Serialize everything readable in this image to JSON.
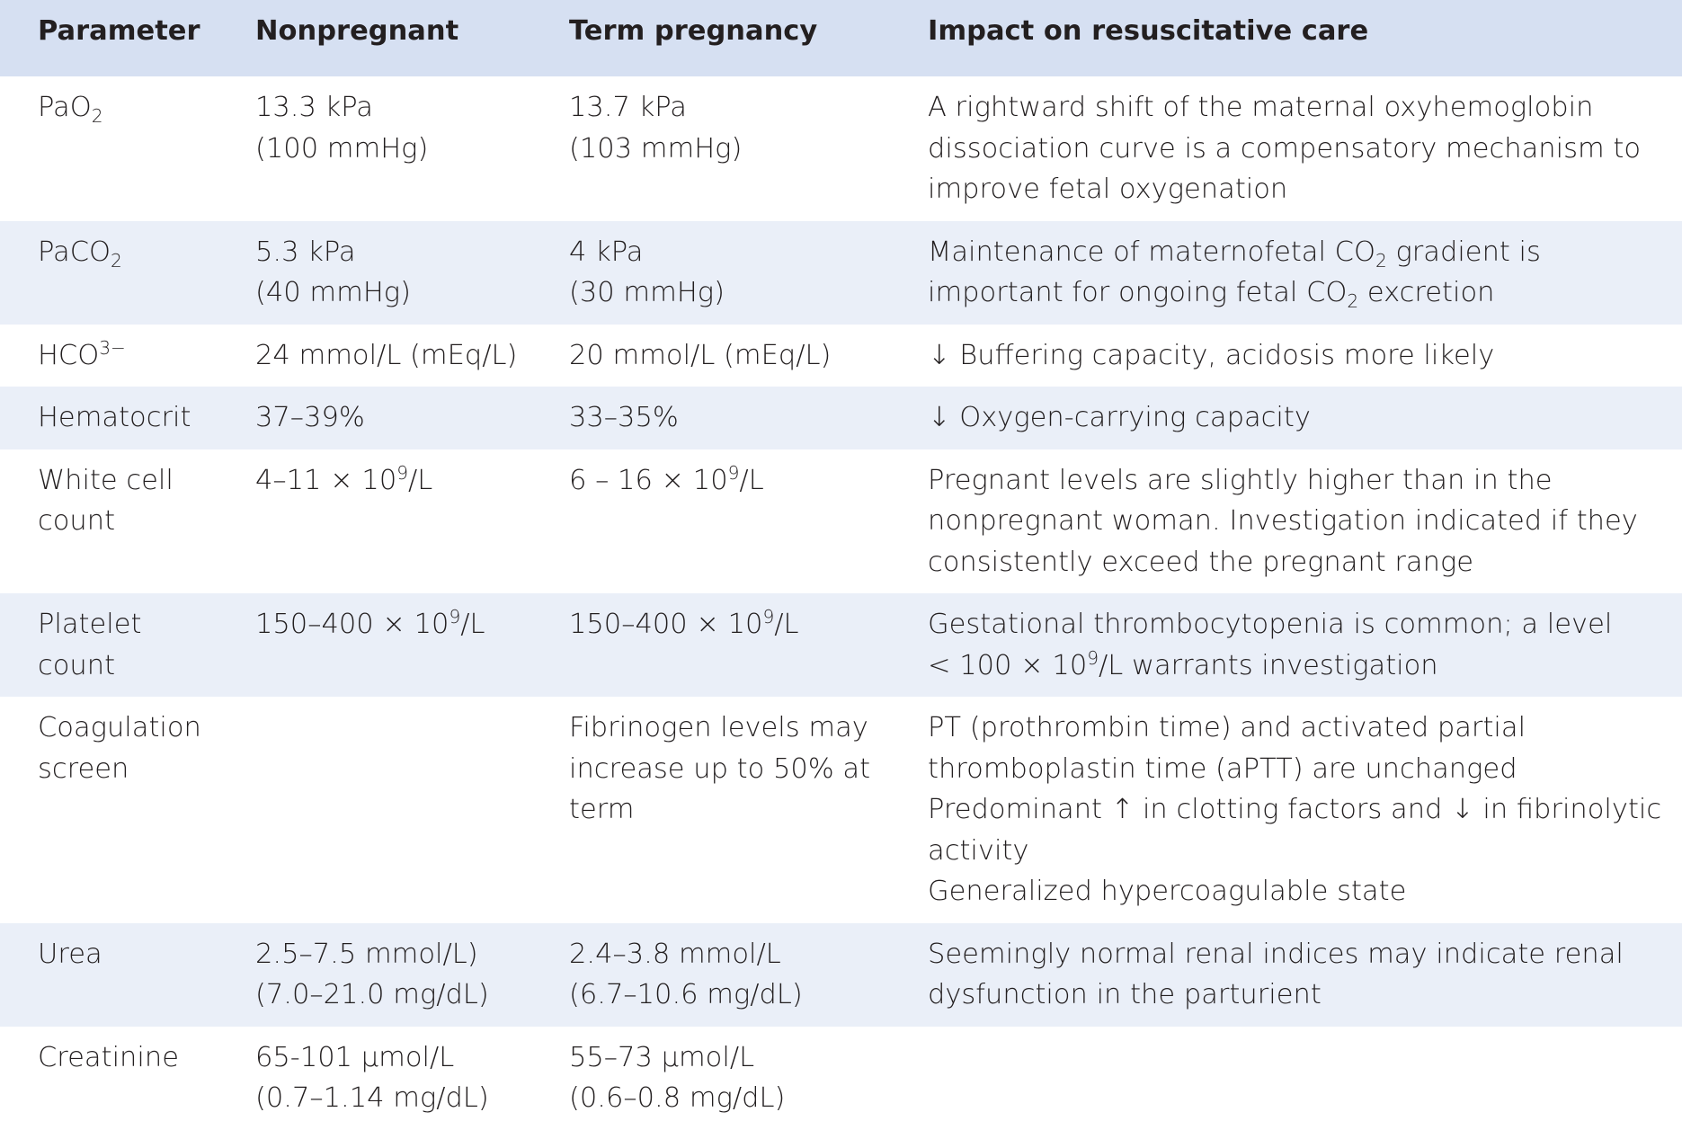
{
  "table": {
    "headers": [
      "Parameter",
      "Nonpregnant",
      "Term pregnancy",
      "Impact on resuscitative care"
    ],
    "rows": [
      {
        "parameter": [
          [
            "PaO",
            "",
            "2",
            ""
          ]
        ],
        "nonpregnant": [
          "13.3 kPa",
          "(100 mmHg)"
        ],
        "term": [
          "13.7 kPa",
          "(103 mmHg)"
        ],
        "impact": [
          "A rightward shift of the maternal oxyhemoglobin",
          "dissociation curve is a compensatory mechanism to",
          "improve fetal oxygenation"
        ]
      },
      {
        "parameter": [
          [
            "PaCO",
            "",
            "2",
            ""
          ]
        ],
        "nonpregnant": [
          "5.3 kPa",
          "(40 mmHg)"
        ],
        "term": [
          "4 kPa",
          "(30 mmHg)"
        ],
        "impact_rich": [
          [
            "Maintenance of maternofetal CO",
            "2",
            " gradient is"
          ],
          [
            "important for ongoing fetal CO",
            "2",
            " excretion"
          ]
        ]
      },
      {
        "parameter_sup": [
          "HCO",
          "3−"
        ],
        "nonpregnant": [
          "24 mmol/L (mEq/L)"
        ],
        "term": [
          "20 mmol/L (mEq/L)"
        ],
        "impact": [
          "↓ Buffering capacity, acidosis more likely"
        ]
      },
      {
        "parameter_text": [
          "Hematocrit"
        ],
        "nonpregnant": [
          "37–39%"
        ],
        "term": [
          "33–35%"
        ],
        "impact": [
          "↓ Oxygen-carrying capacity"
        ]
      },
      {
        "parameter_text": [
          "White cell",
          "count"
        ],
        "nonpregnant_sup": [
          "4–11 × 10",
          "9",
          "/L"
        ],
        "term_sup": [
          "6 – 16 × 10",
          "9",
          "/L"
        ],
        "impact": [
          "Pregnant levels are slightly higher than in the",
          "nonpregnant woman. Investigation indicated if they",
          "consistently exceed the pregnant range"
        ]
      },
      {
        "parameter_text": [
          "Platelet",
          "count"
        ],
        "nonpregnant_sup": [
          "150–400 × 10",
          "9",
          "/L"
        ],
        "term_sup": [
          "150–400 × 10",
          "9",
          "/L"
        ],
        "impact_line1": "Gestational thrombocytopenia is common; a level",
        "impact_line2_sup": [
          "< 100 × 10",
          "9",
          "/L warrants investigation"
        ]
      },
      {
        "parameter_text": [
          "Coagulation",
          "screen"
        ],
        "nonpregnant": [],
        "term": [
          "Fibrinogen levels may",
          "increase up to 50% at",
          "term"
        ],
        "impact": [
          "PT (prothrombin time) and activated partial",
          "thromboplastin time (aPTT) are unchanged",
          "Predominant ↑ in clotting factors and ↓ in fibrinolytic",
          "activity",
          "Generalized hypercoagulable state"
        ]
      },
      {
        "parameter_text": [
          "Urea"
        ],
        "nonpregnant": [
          "2.5–7.5 mmol/L)",
          "(7.0–21.0 mg/dL)"
        ],
        "term": [
          "2.4–3.8 mmol/L",
          "(6.7–10.6 mg/dL)"
        ],
        "impact": [
          "Seemingly normal renal indices may indicate renal",
          "dysfunction in the parturient"
        ]
      },
      {
        "parameter_text": [
          "Creatinine"
        ],
        "nonpregnant": [
          "65-101 µmol/L",
          "(0.7–1.14 mg/dL)"
        ],
        "term": [
          "55–73 µmol/L",
          "(0.6–0.8 mg/dL)"
        ],
        "impact": []
      }
    ]
  }
}
